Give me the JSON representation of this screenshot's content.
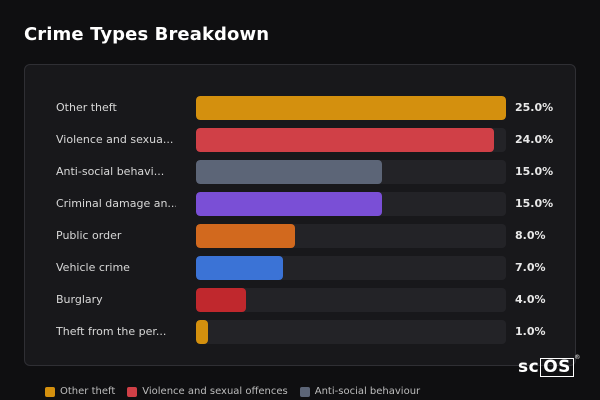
{
  "page": {
    "title": "Crime Types Breakdown"
  },
  "chart_data": {
    "type": "bar",
    "orientation": "horizontal",
    "title": "Crime Types Breakdown",
    "categories": [
      "Other theft",
      "Violence and sexua...",
      "Anti-social behavi...",
      "Criminal damage an...",
      "Public order",
      "Vehicle crime",
      "Burglary",
      "Theft from the per..."
    ],
    "values": [
      25.0,
      24.0,
      15.0,
      15.0,
      8.0,
      7.0,
      4.0,
      1.0
    ],
    "value_labels": [
      "25.0%",
      "24.0%",
      "15.0%",
      "15.0%",
      "8.0%",
      "7.0%",
      "4.0%",
      "1.0%"
    ],
    "xlim": [
      0,
      25
    ],
    "colors": [
      "#d4900e",
      "#d04047",
      "#5c6577",
      "#7a4fd6",
      "#d2691e",
      "#3b73d6",
      "#c0282d",
      "#d4900e"
    ],
    "legend": [
      {
        "label": "Other theft",
        "color": "#d4900e"
      },
      {
        "label": "Violence and sexual offences",
        "color": "#d04047"
      },
      {
        "label": "Anti-social behaviour",
        "color": "#5c6577"
      }
    ],
    "legend_position": "bottom"
  },
  "brand": {
    "prefix": "sc",
    "boxed": "OS",
    "mark": "®"
  }
}
